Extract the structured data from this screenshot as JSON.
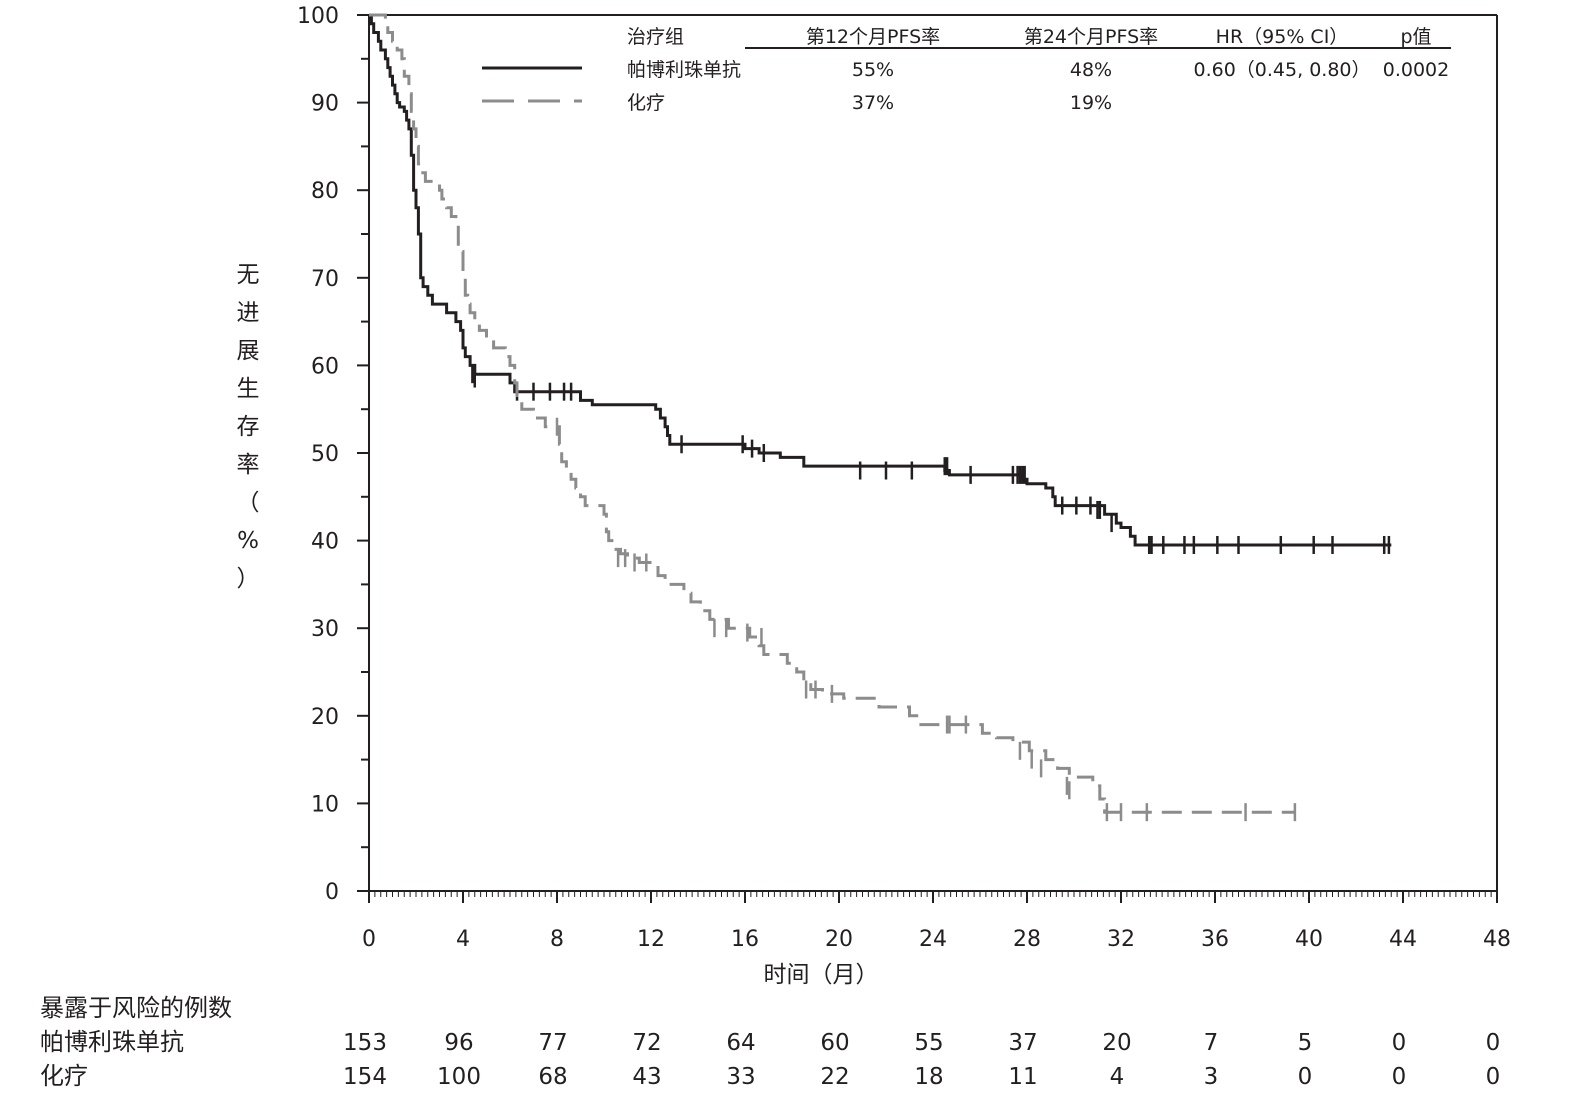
{
  "chart_data": {
    "type": "line",
    "subtype": "kaplan-meier step curves",
    "title": "",
    "xlabel": "时间（月）",
    "ylabel": "无进展生存率（%）",
    "xlim": [
      0,
      48
    ],
    "ylim": [
      0,
      100
    ],
    "x_ticks": [
      0,
      4,
      8,
      12,
      16,
      20,
      24,
      28,
      32,
      36,
      40,
      44,
      48
    ],
    "y_ticks": [
      0,
      10,
      20,
      30,
      40,
      50,
      60,
      70,
      80,
      90,
      100
    ],
    "grid": false,
    "legend": {
      "placement": "top-right",
      "headers": [
        "治疗组",
        "第12个月PFS率",
        "第24个月PFS率",
        "HR（95% CI）",
        "p值"
      ],
      "rows": [
        {
          "series_index": 0,
          "cells": [
            "帕博利珠单抗",
            "55%",
            "48%",
            "0.60（0.45, 0.80）",
            "0.0002"
          ]
        },
        {
          "series_index": 1,
          "cells": [
            "化疗",
            "37%",
            "19%",
            "",
            ""
          ]
        }
      ]
    },
    "series": [
      {
        "name": "帕博利珠单抗",
        "color": "#231f20",
        "style": "solid",
        "steps": [
          [
            0,
            100
          ],
          [
            0.1,
            99
          ],
          [
            0.2,
            98
          ],
          [
            0.4,
            97
          ],
          [
            0.5,
            96
          ],
          [
            0.7,
            95
          ],
          [
            0.8,
            94
          ],
          [
            0.9,
            93
          ],
          [
            1.0,
            92
          ],
          [
            1.1,
            91
          ],
          [
            1.2,
            90
          ],
          [
            1.3,
            89.5
          ],
          [
            1.5,
            89
          ],
          [
            1.6,
            88
          ],
          [
            1.7,
            87
          ],
          [
            1.8,
            86
          ],
          [
            1.8,
            84
          ],
          [
            1.9,
            82
          ],
          [
            1.9,
            80
          ],
          [
            2.0,
            78
          ],
          [
            2.1,
            75
          ],
          [
            2.2,
            72
          ],
          [
            2.2,
            70
          ],
          [
            2.3,
            69
          ],
          [
            2.5,
            68
          ],
          [
            2.7,
            67
          ],
          [
            3.0,
            67
          ],
          [
            3.3,
            66
          ],
          [
            3.7,
            65
          ],
          [
            3.9,
            64
          ],
          [
            4.0,
            62
          ],
          [
            4.1,
            61
          ],
          [
            4.3,
            60
          ],
          [
            4.5,
            59
          ],
          [
            6.0,
            58
          ],
          [
            6.2,
            57
          ],
          [
            9.0,
            56
          ],
          [
            9.5,
            55.5
          ],
          [
            12.2,
            55
          ],
          [
            12.4,
            54
          ],
          [
            12.6,
            53
          ],
          [
            12.7,
            52
          ],
          [
            12.8,
            51
          ],
          [
            16.0,
            50.5
          ],
          [
            16.6,
            50
          ],
          [
            17.5,
            49.5
          ],
          [
            18.5,
            48.5
          ],
          [
            24.5,
            48
          ],
          [
            24.7,
            47.5
          ],
          [
            27.8,
            47
          ],
          [
            28.0,
            46.5
          ],
          [
            28.8,
            46
          ],
          [
            29.1,
            45
          ],
          [
            29.2,
            44
          ],
          [
            31.3,
            43
          ],
          [
            31.8,
            42
          ],
          [
            32.0,
            41.5
          ],
          [
            32.4,
            40.5
          ],
          [
            32.6,
            39.5
          ],
          [
            43.5,
            39.5
          ]
        ],
        "censors": [
          [
            4.4,
            59
          ],
          [
            4.5,
            58.5
          ],
          [
            6.3,
            57
          ],
          [
            7.0,
            57
          ],
          [
            7.7,
            57
          ],
          [
            8.3,
            57
          ],
          [
            8.6,
            57
          ],
          [
            13.3,
            51
          ],
          [
            15.9,
            51
          ],
          [
            16.3,
            50.5
          ],
          [
            16.8,
            50
          ],
          [
            20.9,
            48
          ],
          [
            22.0,
            48
          ],
          [
            23.1,
            48
          ],
          [
            24.5,
            48.5
          ],
          [
            24.6,
            48.5
          ],
          [
            25.6,
            47.5
          ],
          [
            27.4,
            47.5
          ],
          [
            27.6,
            47.5
          ],
          [
            27.7,
            47.5
          ],
          [
            27.8,
            47.5
          ],
          [
            27.9,
            47.5
          ],
          [
            29.5,
            44
          ],
          [
            30.1,
            44
          ],
          [
            30.7,
            44
          ],
          [
            31.0,
            43.5
          ],
          [
            31.1,
            43.5
          ],
          [
            31.6,
            42
          ],
          [
            33.2,
            39.5
          ],
          [
            33.3,
            39.5
          ],
          [
            33.8,
            39.5
          ],
          [
            34.7,
            39.5
          ],
          [
            35.1,
            39.5
          ],
          [
            36.1,
            39.5
          ],
          [
            37.0,
            39.5
          ],
          [
            38.8,
            39.5
          ],
          [
            40.2,
            39.5
          ],
          [
            41.0,
            39.5
          ],
          [
            43.2,
            39.5
          ],
          [
            43.4,
            39.5
          ]
        ]
      },
      {
        "name": "化疗",
        "color": "#8c8c8c",
        "style": "dashed",
        "steps": [
          [
            0,
            100
          ],
          [
            0.7,
            99
          ],
          [
            0.8,
            98
          ],
          [
            1.0,
            97
          ],
          [
            1.2,
            96
          ],
          [
            1.4,
            95
          ],
          [
            1.5,
            93
          ],
          [
            1.7,
            91
          ],
          [
            1.8,
            89
          ],
          [
            1.9,
            87
          ],
          [
            2.0,
            85
          ],
          [
            2.1,
            83
          ],
          [
            2.2,
            82
          ],
          [
            2.4,
            81
          ],
          [
            2.8,
            81
          ],
          [
            3.0,
            80
          ],
          [
            3.1,
            79
          ],
          [
            3.3,
            78
          ],
          [
            3.5,
            77
          ],
          [
            3.7,
            76
          ],
          [
            3.8,
            73
          ],
          [
            4.0,
            70
          ],
          [
            4.1,
            68
          ],
          [
            4.2,
            67
          ],
          [
            4.3,
            66
          ],
          [
            4.5,
            65
          ],
          [
            4.7,
            64
          ],
          [
            5.0,
            63
          ],
          [
            5.3,
            62
          ],
          [
            5.8,
            61
          ],
          [
            6.0,
            60
          ],
          [
            6.2,
            58
          ],
          [
            6.3,
            56
          ],
          [
            6.5,
            55
          ],
          [
            7.0,
            54
          ],
          [
            7.5,
            53
          ],
          [
            8.0,
            53
          ],
          [
            8.1,
            51
          ],
          [
            8.2,
            49
          ],
          [
            8.4,
            48
          ],
          [
            8.6,
            47
          ],
          [
            8.8,
            46
          ],
          [
            9.0,
            45
          ],
          [
            9.2,
            44
          ],
          [
            10.0,
            43
          ],
          [
            10.1,
            41
          ],
          [
            10.2,
            40
          ],
          [
            10.4,
            39
          ],
          [
            10.7,
            38.5
          ],
          [
            11.0,
            38
          ],
          [
            11.5,
            37.5
          ],
          [
            12.0,
            37.5
          ],
          [
            12.3,
            36
          ],
          [
            12.6,
            35
          ],
          [
            13.4,
            34
          ],
          [
            13.7,
            33
          ],
          [
            14.1,
            32
          ],
          [
            14.5,
            31
          ],
          [
            15.3,
            30
          ],
          [
            16.2,
            29
          ],
          [
            16.6,
            28
          ],
          [
            16.8,
            27
          ],
          [
            17.8,
            26
          ],
          [
            18.2,
            25
          ],
          [
            18.5,
            24
          ],
          [
            18.8,
            23
          ],
          [
            19.3,
            22.5
          ],
          [
            20.2,
            22
          ],
          [
            21.7,
            21
          ],
          [
            23.0,
            20
          ],
          [
            23.4,
            19
          ],
          [
            26.1,
            18
          ],
          [
            26.7,
            17.5
          ],
          [
            27.4,
            17
          ],
          [
            28.1,
            16
          ],
          [
            28.8,
            15
          ],
          [
            29.3,
            14
          ],
          [
            29.8,
            13
          ],
          [
            30.8,
            12
          ],
          [
            31.1,
            10.5
          ],
          [
            31.3,
            9
          ],
          [
            39.4,
            9
          ]
        ],
        "censors": [
          [
            8.0,
            53
          ],
          [
            10.6,
            38
          ],
          [
            10.9,
            38
          ],
          [
            11.3,
            37.5
          ],
          [
            11.8,
            37.5
          ],
          [
            14.7,
            30
          ],
          [
            15.2,
            30
          ],
          [
            16.1,
            29.5
          ],
          [
            16.7,
            29
          ],
          [
            18.6,
            23
          ],
          [
            19.0,
            23
          ],
          [
            19.7,
            22.5
          ],
          [
            24.6,
            19
          ],
          [
            24.7,
            19
          ],
          [
            25.4,
            19
          ],
          [
            27.7,
            16
          ],
          [
            28.2,
            15
          ],
          [
            28.6,
            14
          ],
          [
            29.7,
            12
          ],
          [
            29.8,
            11.5
          ],
          [
            31.4,
            9
          ],
          [
            32.0,
            9
          ],
          [
            33.1,
            9
          ],
          [
            37.3,
            9
          ],
          [
            39.4,
            9
          ]
        ]
      }
    ],
    "risk_table": {
      "title": "暴露于风险的例数",
      "timepoints": [
        0,
        4,
        8,
        12,
        16,
        20,
        24,
        28,
        32,
        36,
        40,
        44,
        48
      ],
      "rows": [
        {
          "label": "帕博利珠单抗",
          "values": [
            153,
            96,
            77,
            72,
            64,
            60,
            55,
            37,
            20,
            7,
            5,
            0,
            0
          ]
        },
        {
          "label": "化疗",
          "values": [
            154,
            100,
            68,
            43,
            33,
            22,
            18,
            11,
            4,
            3,
            0,
            0,
            0
          ]
        }
      ]
    }
  }
}
